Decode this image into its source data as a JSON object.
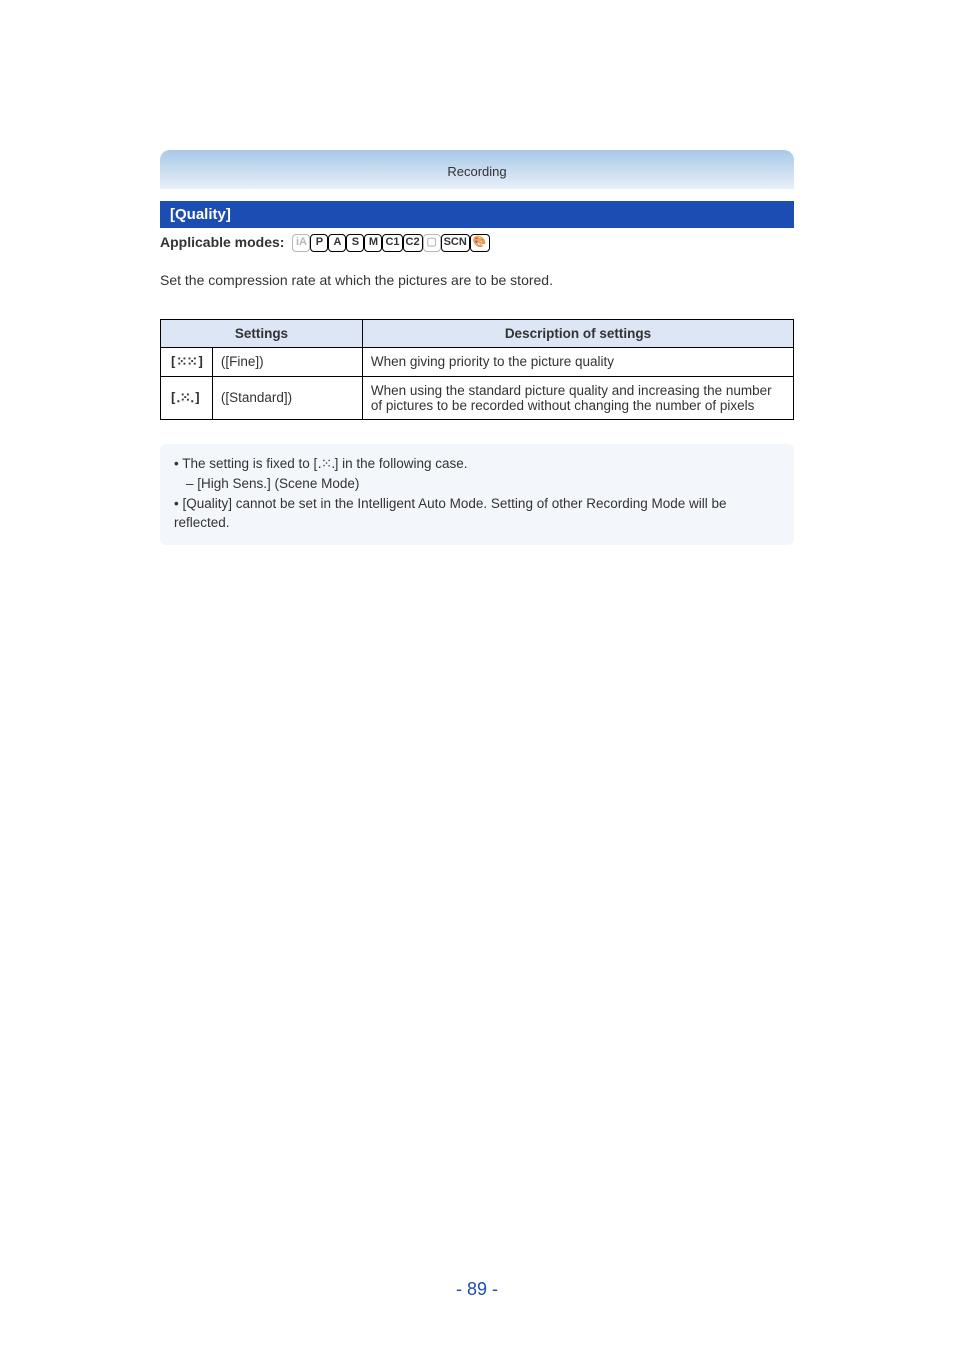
{
  "header": {
    "category": "Recording"
  },
  "section": {
    "title": "[Quality]"
  },
  "modes": {
    "label": "Applicable modes:",
    "chips": [
      {
        "text": "iA",
        "ghost": true
      },
      {
        "text": "P",
        "ghost": false
      },
      {
        "text": "A",
        "ghost": false
      },
      {
        "text": "S",
        "ghost": false
      },
      {
        "text": "M",
        "ghost": false
      },
      {
        "text": "C1",
        "ghost": false
      },
      {
        "text": "C2",
        "ghost": false
      },
      {
        "text": "▢",
        "ghost": true
      },
      {
        "text": "SCN",
        "ghost": false
      },
      {
        "text": "🎨",
        "ghost": false
      }
    ]
  },
  "intro": "Set the compression rate at which the pictures are to be stored.",
  "table": {
    "head": {
      "col1": "Settings",
      "col2": "Description of settings"
    },
    "rows": [
      {
        "icon": "[⁙⁙]",
        "label": "([Fine])",
        "desc": "When giving priority to the picture quality"
      },
      {
        "icon": "[․⁙․]",
        "label": "([Standard])",
        "desc": "When using the standard picture quality and increasing the number of pictures to be recorded without changing the number of pixels"
      }
    ]
  },
  "notes": {
    "line1_pre": "• The setting is fixed to [",
    "line1_icon": "․⁙․",
    "line1_post": "] in the following case.",
    "line2": "– [High Sens.] (Scene Mode)",
    "line3": "• [Quality] cannot be set in the Intelligent Auto Mode. Setting of other Recording Mode will be reflected."
  },
  "page": "- 89 -",
  "colors": {
    "section_bg": "#1b4db3",
    "table_head_bg": "#dde6f5",
    "notes_bg": "#f3f6fb",
    "page_num": "#1b4db3"
  }
}
